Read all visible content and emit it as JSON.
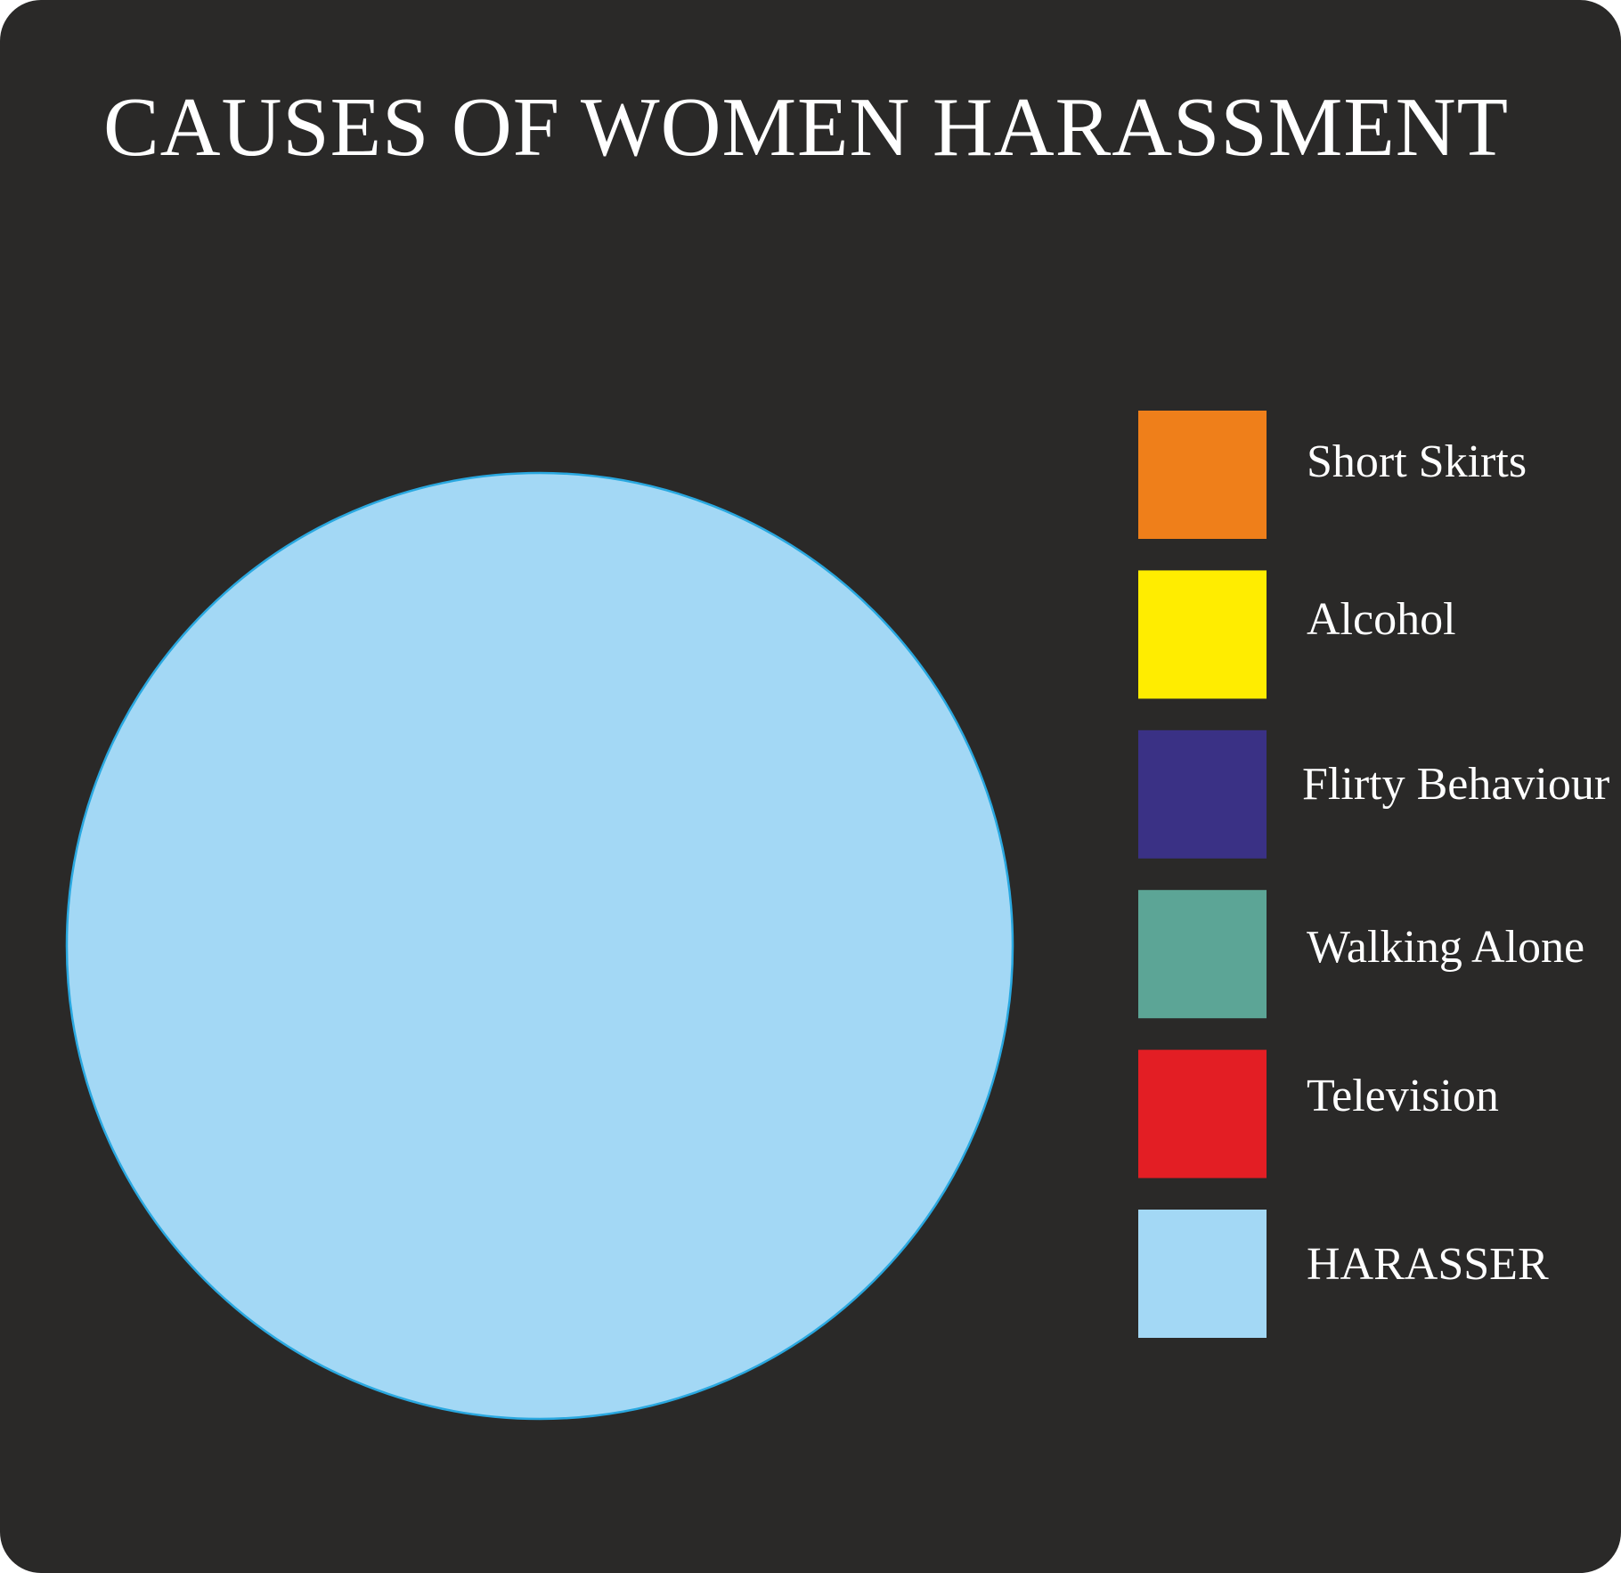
{
  "chart_data": {
    "type": "pie",
    "title": "CAUSES OF WOMEN HARASSMENT",
    "categories": [
      "Short Skirts",
      "Alcohol",
      "Flirty Behaviour",
      "Walking Alone",
      "Television",
      "HARASSER"
    ],
    "values": [
      0,
      0,
      0,
      0,
      0,
      100
    ],
    "colors": [
      "#ef7f1a",
      "#ffed00",
      "#3a3185",
      "#5ca596",
      "#e31e24",
      "#a3d8f5"
    ],
    "slice_stroke": "#29a8e0",
    "legend_position": "right"
  }
}
